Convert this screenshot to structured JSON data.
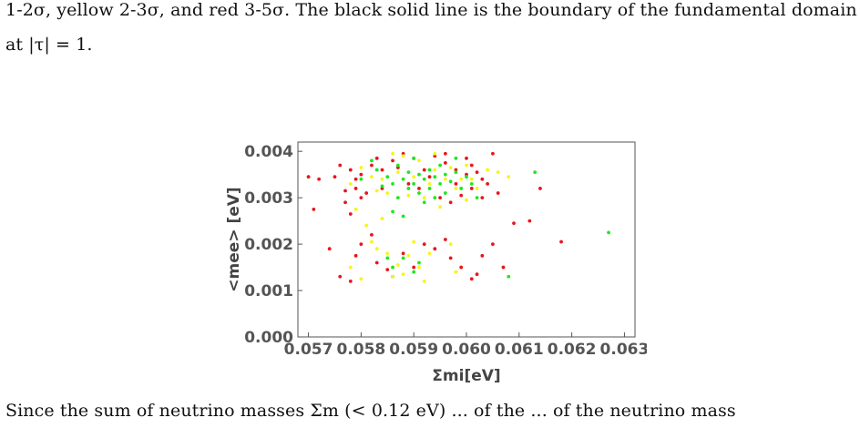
{
  "paper": {
    "line1": "1-2σ, yellow 2-3σ, and red 3-5σ. The black solid line is the boundary of the fundamental domain",
    "line2": "at |τ| = 1.",
    "line3": "Since the sum of neutrino masses Σm (< 0.12 eV) ... of the ... of the neutrino mass"
  },
  "chart_data": {
    "type": "scatter",
    "xlabel": "Σmi[eV]",
    "ylabel": "<mee> [eV]",
    "xlim": [
      0.0568,
      0.0632
    ],
    "ylim": [
      0.0,
      0.0042
    ],
    "xticks": [
      "0.057",
      "0.058",
      "0.059",
      "0.060",
      "0.061",
      "0.062",
      "0.063"
    ],
    "yticks": [
      "0.000",
      "0.001",
      "0.002",
      "0.003",
      "0.004"
    ],
    "grid": false,
    "legend": "none",
    "series": [
      {
        "color": "#e8161b",
        "points": [
          [
            0.057,
            0.00345
          ],
          [
            0.0572,
            0.0034
          ],
          [
            0.0575,
            0.00345
          ],
          [
            0.0576,
            0.0037
          ],
          [
            0.0577,
            0.00315
          ],
          [
            0.0578,
            0.0036
          ],
          [
            0.0579,
            0.0034
          ],
          [
            0.058,
            0.0035
          ],
          [
            0.058,
            0.003
          ],
          [
            0.0582,
            0.0037
          ],
          [
            0.0583,
            0.00385
          ],
          [
            0.0584,
            0.0032
          ],
          [
            0.0586,
            0.0038
          ],
          [
            0.0588,
            0.00395
          ],
          [
            0.059,
            0.00385
          ],
          [
            0.0592,
            0.0036
          ],
          [
            0.0594,
            0.0039
          ],
          [
            0.0596,
            0.00375
          ],
          [
            0.0598,
            0.0036
          ],
          [
            0.06,
            0.00385
          ],
          [
            0.0601,
            0.0037
          ],
          [
            0.0602,
            0.00355
          ],
          [
            0.0603,
            0.0034
          ],
          [
            0.0604,
            0.0033
          ],
          [
            0.0605,
            0.00395
          ],
          [
            0.0606,
            0.0031
          ],
          [
            0.0603,
            0.003
          ],
          [
            0.0601,
            0.0032
          ],
          [
            0.0599,
            0.00305
          ],
          [
            0.0597,
            0.0029
          ],
          [
            0.0595,
            0.003
          ],
          [
            0.0581,
            0.0031
          ],
          [
            0.0579,
            0.0032
          ],
          [
            0.0577,
            0.0029
          ],
          [
            0.0578,
            0.00265
          ],
          [
            0.0571,
            0.00275
          ],
          [
            0.0574,
            0.0019
          ],
          [
            0.0576,
            0.0013
          ],
          [
            0.0578,
            0.0012
          ],
          [
            0.0579,
            0.00175
          ],
          [
            0.058,
            0.002
          ],
          [
            0.0582,
            0.0022
          ],
          [
            0.0583,
            0.0016
          ],
          [
            0.0585,
            0.00145
          ],
          [
            0.0586,
            0.0013
          ],
          [
            0.0588,
            0.0018
          ],
          [
            0.059,
            0.0015
          ],
          [
            0.0592,
            0.002
          ],
          [
            0.0594,
            0.0019
          ],
          [
            0.0596,
            0.0021
          ],
          [
            0.0597,
            0.0017
          ],
          [
            0.0599,
            0.0015
          ],
          [
            0.0601,
            0.00125
          ],
          [
            0.0602,
            0.00135
          ],
          [
            0.0603,
            0.00175
          ],
          [
            0.0605,
            0.002
          ],
          [
            0.0607,
            0.0015
          ],
          [
            0.0609,
            0.00245
          ],
          [
            0.0612,
            0.0025
          ],
          [
            0.0614,
            0.0032
          ],
          [
            0.0618,
            0.00205
          ],
          [
            0.0589,
            0.0033
          ],
          [
            0.0591,
            0.0032
          ],
          [
            0.0593,
            0.00345
          ],
          [
            0.0584,
            0.0036
          ],
          [
            0.0587,
            0.00365
          ],
          [
            0.06,
            0.0035
          ],
          [
            0.0598,
            0.0033
          ],
          [
            0.0596,
            0.00395
          ]
        ]
      },
      {
        "color": "#f5f51c",
        "points": [
          [
            0.0578,
            0.0033
          ],
          [
            0.058,
            0.00365
          ],
          [
            0.0582,
            0.00345
          ],
          [
            0.0584,
            0.0034
          ],
          [
            0.0585,
            0.0031
          ],
          [
            0.0586,
            0.00395
          ],
          [
            0.0587,
            0.00355
          ],
          [
            0.0589,
            0.00305
          ],
          [
            0.059,
            0.00345
          ],
          [
            0.0591,
            0.0038
          ],
          [
            0.0592,
            0.003
          ],
          [
            0.0593,
            0.0033
          ],
          [
            0.0594,
            0.0036
          ],
          [
            0.0595,
            0.0028
          ],
          [
            0.0596,
            0.0034
          ],
          [
            0.0597,
            0.00365
          ],
          [
            0.0598,
            0.0032
          ],
          [
            0.0599,
            0.0034
          ],
          [
            0.06,
            0.00295
          ],
          [
            0.0601,
            0.0034
          ],
          [
            0.0602,
            0.0032
          ],
          [
            0.0604,
            0.0036
          ],
          [
            0.0606,
            0.00355
          ],
          [
            0.0608,
            0.00345
          ],
          [
            0.0579,
            0.00275
          ],
          [
            0.0581,
            0.0024
          ],
          [
            0.0582,
            0.00205
          ],
          [
            0.0583,
            0.0019
          ],
          [
            0.0584,
            0.00255
          ],
          [
            0.0585,
            0.0018
          ],
          [
            0.0586,
            0.0013
          ],
          [
            0.0587,
            0.00155
          ],
          [
            0.0588,
            0.00135
          ],
          [
            0.0589,
            0.00175
          ],
          [
            0.059,
            0.00205
          ],
          [
            0.0591,
            0.0015
          ],
          [
            0.0592,
            0.0012
          ],
          [
            0.0593,
            0.0018
          ],
          [
            0.0578,
            0.0015
          ],
          [
            0.058,
            0.00125
          ],
          [
            0.0597,
            0.002
          ],
          [
            0.0598,
            0.0014
          ],
          [
            0.0588,
            0.0039
          ],
          [
            0.0594,
            0.00395
          ],
          [
            0.0583,
            0.00315
          ],
          [
            0.06,
            0.0037
          ]
        ]
      },
      {
        "color": "#1ee81e",
        "points": [
          [
            0.0584,
            0.00325
          ],
          [
            0.0585,
            0.00345
          ],
          [
            0.0586,
            0.0033
          ],
          [
            0.0587,
            0.003
          ],
          [
            0.0587,
            0.0037
          ],
          [
            0.0588,
            0.0034
          ],
          [
            0.0589,
            0.0032
          ],
          [
            0.0589,
            0.00355
          ],
          [
            0.059,
            0.0033
          ],
          [
            0.059,
            0.00385
          ],
          [
            0.0591,
            0.0031
          ],
          [
            0.0591,
            0.0035
          ],
          [
            0.0592,
            0.0034
          ],
          [
            0.0592,
            0.0029
          ],
          [
            0.0593,
            0.0036
          ],
          [
            0.0593,
            0.0032
          ],
          [
            0.0594,
            0.00345
          ],
          [
            0.0594,
            0.003
          ],
          [
            0.0595,
            0.0033
          ],
          [
            0.0595,
            0.0037
          ],
          [
            0.0596,
            0.0035
          ],
          [
            0.0596,
            0.0031
          ],
          [
            0.0597,
            0.00335
          ],
          [
            0.0598,
            0.00355
          ],
          [
            0.0599,
            0.0032
          ],
          [
            0.06,
            0.00345
          ],
          [
            0.0601,
            0.0033
          ],
          [
            0.0586,
            0.0027
          ],
          [
            0.0588,
            0.0026
          ],
          [
            0.0583,
            0.0036
          ],
          [
            0.0582,
            0.0038
          ],
          [
            0.058,
            0.0034
          ],
          [
            0.0602,
            0.003
          ],
          [
            0.0598,
            0.00385
          ],
          [
            0.0585,
            0.0017
          ],
          [
            0.0586,
            0.0015
          ],
          [
            0.0588,
            0.0017
          ],
          [
            0.059,
            0.0014
          ],
          [
            0.0591,
            0.0016
          ],
          [
            0.0608,
            0.0013
          ],
          [
            0.0613,
            0.00355
          ],
          [
            0.0627,
            0.00225
          ]
        ]
      }
    ]
  }
}
